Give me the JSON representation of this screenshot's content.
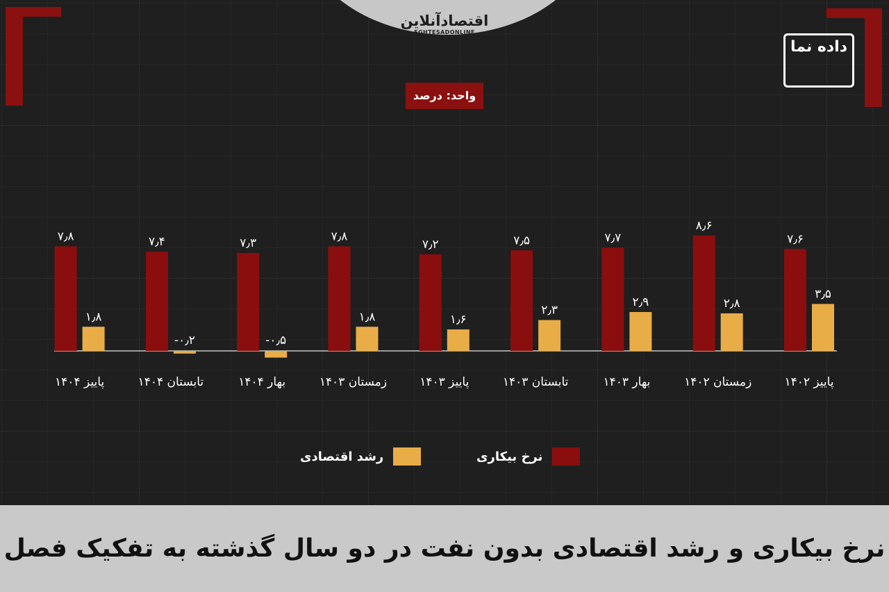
{
  "header": {
    "brand_fa": "اقتصادآنلاین",
    "brand_en": "EGHTESADONLINE",
    "logo_text": "داده نما",
    "unit_label": "واحد: درصد"
  },
  "title": "نرخ بیکاری و رشد اقتصادی بدون نفت در دو سال گذشته به تفکیک فصل",
  "colors": {
    "unemployment": "#8b0e0e",
    "growth": "#e9ad48",
    "background": "#1f1f1f",
    "title_bar": "#c9c9c9"
  },
  "chart_data": {
    "type": "bar",
    "categories": [
      "پاییز ۱۴۰۲",
      "زمستان ۱۴۰۲",
      "بهار ۱۴۰۳",
      "تابستان ۱۴۰۳",
      "پاییز ۱۴۰۳",
      "زمستان ۱۴۰۳",
      "بهار ۱۴۰۴",
      "تابستان ۱۴۰۴",
      "پاییز ۱۴۰۴"
    ],
    "series": [
      {
        "name": "نرخ بیکاری",
        "values": [
          7.6,
          8.6,
          7.7,
          7.5,
          7.2,
          7.8,
          7.3,
          7.4,
          7.8
        ],
        "labels": [
          "۷٫۶",
          "۸٫۶",
          "۷٫۷",
          "۷٫۵",
          "۷٫۲",
          "۷٫۸",
          "۷٫۳",
          "۷٫۴",
          "۷٫۸"
        ]
      },
      {
        "name": "رشد اقتصادی",
        "values": [
          3.5,
          2.8,
          2.9,
          2.3,
          1.6,
          1.8,
          -0.5,
          -0.2,
          1.8
        ],
        "labels": [
          "۳٫۵",
          "۲٫۸",
          "۲٫۹",
          "۲٫۳",
          "۱٫۶",
          "۱٫۸",
          "-۰٫۵",
          "-۰٫۲",
          "۱٫۸"
        ]
      }
    ],
    "legend": "bottom",
    "grid": true
  }
}
